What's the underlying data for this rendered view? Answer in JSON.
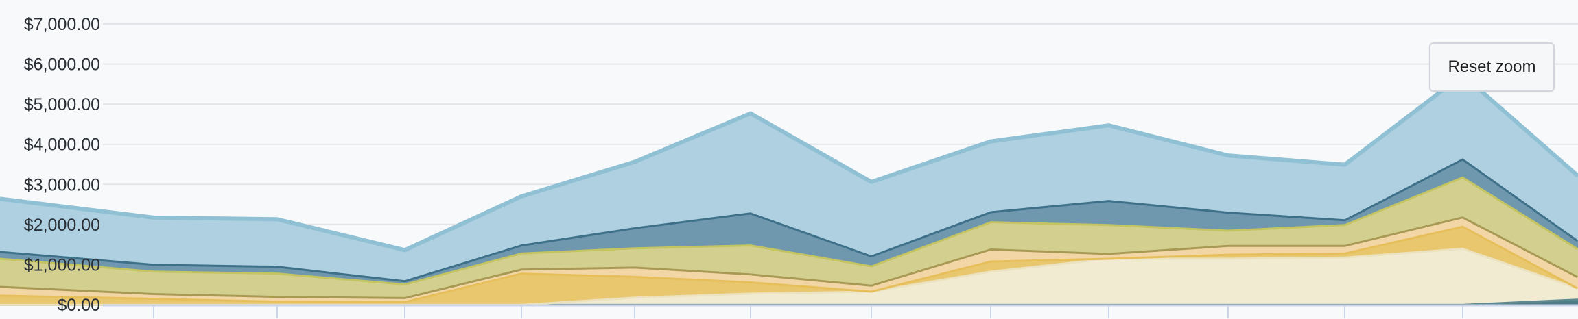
{
  "chart_data": {
    "type": "area",
    "stacked": true,
    "x": [
      0,
      1,
      2,
      3,
      4,
      5,
      6,
      7,
      8,
      9,
      10,
      11,
      12,
      13
    ],
    "ylim": [
      0,
      7000
    ],
    "y_ticks": [
      {
        "value": 0,
        "label": "$0.00"
      },
      {
        "value": 1000,
        "label": "$1,000.00"
      },
      {
        "value": 2000,
        "label": "$2,000.00"
      },
      {
        "value": 3000,
        "label": "$3,000.00"
      },
      {
        "value": 4000,
        "label": "$4,000.00"
      },
      {
        "value": 5000,
        "label": "$5,000.00"
      },
      {
        "value": 6000,
        "label": "$6,000.00"
      },
      {
        "value": 7000,
        "label": "$7,000.00"
      }
    ],
    "grid": true,
    "legend": "none",
    "series": [
      {
        "values": [
          20,
          20,
          20,
          20,
          20,
          20,
          20,
          20,
          20,
          20,
          20,
          20,
          20,
          150
        ],
        "color": "#4f7c86",
        "stroke": "#5d8890"
      },
      {
        "values": [
          0,
          0,
          0,
          0,
          0,
          180,
          280,
          330,
          830,
          1150,
          1150,
          1180,
          1400,
          280
        ],
        "color": "#f1ebd2",
        "stroke": "#ece2bf"
      },
      {
        "values": [
          230,
          150,
          80,
          70,
          780,
          520,
          280,
          0,
          250,
          0,
          100,
          100,
          550,
          0
        ],
        "color": "#e8c76e",
        "stroke": "#e6bf5b"
      },
      {
        "values": [
          220,
          120,
          120,
          100,
          100,
          230,
          200,
          150,
          300,
          120,
          220,
          190,
          230,
          280
        ],
        "color": "#f2d6a6",
        "stroke": "#a89955"
      },
      {
        "values": [
          700,
          560,
          580,
          340,
          400,
          480,
          720,
          480,
          680,
          720,
          380,
          520,
          1000,
          700
        ],
        "color": "#d3d08f",
        "stroke": "#c4c462"
      },
      {
        "values": [
          170,
          170,
          170,
          80,
          200,
          500,
          800,
          250,
          250,
          600,
          450,
          120,
          450,
          200
        ],
        "color": "#6f97ae",
        "stroke": "#3e7189"
      },
      {
        "values": [
          1300,
          1150,
          1160,
          750,
          1200,
          1630,
          2470,
          1830,
          1740,
          1860,
          1400,
          1360,
          2080,
          1600
        ],
        "color": "#aed0e0",
        "stroke": "#8fc0d3"
      }
    ]
  },
  "reset_zoom": {
    "label": "Reset zoom"
  },
  "colors": {
    "grid": "#e2e5ea",
    "axis": "#ccd6eb",
    "background": "#f8f9fb"
  }
}
